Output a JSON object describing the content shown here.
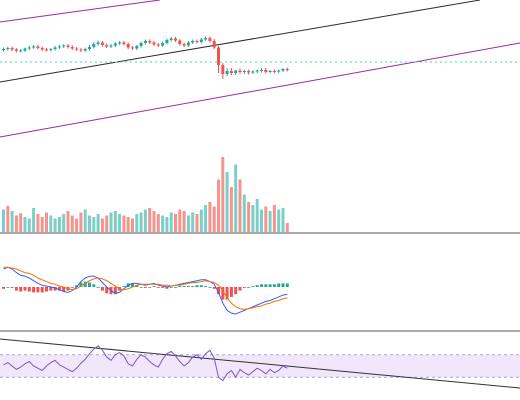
{
  "colors": {
    "up": "#26a69a",
    "down": "#ef5350",
    "trendline": "#2b2b2b",
    "channel": "#9c27b0",
    "dashed_level": "#4dd0c5",
    "macd_line": "#2962ff",
    "signal_line": "#ff6d00",
    "rsi_line": "#7e57c2",
    "rsi_band_fill": "#f2e6fb",
    "pane_divider": "#555555"
  },
  "icons": [],
  "chart_data": [
    {
      "type": "candlestick",
      "title": "",
      "panel": "price",
      "open": [
        40,
        42,
        44,
        41,
        38,
        39,
        43,
        45,
        47,
        44,
        41,
        40,
        42,
        45,
        47,
        49,
        46,
        43,
        41,
        39,
        42,
        46,
        52,
        55,
        50,
        47,
        49,
        53,
        55,
        52,
        45,
        43,
        48,
        54,
        58,
        55,
        51,
        49,
        54,
        60,
        63,
        59,
        52,
        49,
        55,
        58,
        56,
        61,
        64,
        58,
        45,
        10,
        -8,
        -2,
        -6,
        -1,
        -4,
        -2,
        -5,
        -3,
        -1,
        0,
        -4,
        -2,
        -3,
        -1,
        2
      ],
      "close": [
        42,
        44,
        41,
        38,
        39,
        43,
        45,
        47,
        44,
        41,
        40,
        42,
        45,
        47,
        49,
        46,
        43,
        41,
        39,
        42,
        46,
        52,
        55,
        50,
        47,
        49,
        53,
        55,
        52,
        45,
        43,
        48,
        54,
        58,
        55,
        51,
        49,
        54,
        60,
        63,
        59,
        52,
        49,
        55,
        58,
        56,
        61,
        64,
        58,
        45,
        10,
        -8,
        -2,
        -6,
        -1,
        -4,
        -2,
        -5,
        -3,
        -1,
        0,
        -4,
        -2,
        -3,
        -1,
        2,
        0
      ],
      "high": [
        45,
        47,
        47,
        44,
        42,
        45,
        48,
        50,
        50,
        47,
        44,
        44,
        48,
        50,
        52,
        52,
        49,
        46,
        44,
        45,
        50,
        56,
        59,
        58,
        53,
        52,
        56,
        58,
        58,
        55,
        48,
        50,
        57,
        61,
        61,
        58,
        54,
        57,
        63,
        66,
        66,
        62,
        55,
        58,
        61,
        61,
        64,
        67,
        67,
        62,
        48,
        14,
        3,
        4,
        0,
        3,
        0,
        1,
        0,
        1,
        4,
        4,
        0,
        1,
        1,
        4,
        5
      ],
      "low": [
        37,
        39,
        38,
        35,
        35,
        36,
        40,
        42,
        41,
        38,
        37,
        37,
        39,
        42,
        44,
        43,
        40,
        38,
        36,
        36,
        39,
        43,
        49,
        47,
        44,
        44,
        46,
        50,
        49,
        42,
        40,
        40,
        45,
        51,
        52,
        48,
        46,
        46,
        51,
        57,
        56,
        49,
        46,
        46,
        52,
        53,
        53,
        58,
        55,
        42,
        -6,
        -18,
        -12,
        -10,
        -10,
        -8,
        -8,
        -9,
        -8,
        -6,
        -5,
        -7,
        -7,
        -7,
        -6,
        -4,
        -3
      ],
      "xlabel": "",
      "ylabel": ""
    },
    {
      "type": "bar",
      "title": "",
      "panel": "volume",
      "values": [
        30,
        35,
        28,
        22,
        25,
        20,
        18,
        32,
        24,
        20,
        26,
        22,
        18,
        20,
        24,
        28,
        22,
        18,
        26,
        30,
        22,
        20,
        24,
        18,
        22,
        26,
        28,
        24,
        22,
        20,
        18,
        24,
        26,
        30,
        32,
        28,
        24,
        22,
        20,
        26,
        24,
        30,
        28,
        22,
        26,
        24,
        30,
        36,
        40,
        34,
        70,
        100,
        80,
        60,
        90,
        70,
        50,
        40,
        36,
        44,
        30,
        34,
        28,
        36,
        30,
        32,
        12
      ],
      "direction": [
        "up",
        "down",
        "up",
        "down",
        "down",
        "up",
        "up",
        "up",
        "down",
        "down",
        "down",
        "up",
        "up",
        "up",
        "up",
        "down",
        "down",
        "down",
        "down",
        "up",
        "up",
        "up",
        "up",
        "down",
        "down",
        "up",
        "up",
        "up",
        "down",
        "down",
        "down",
        "up",
        "up",
        "up",
        "down",
        "down",
        "down",
        "up",
        "up",
        "up",
        "down",
        "down",
        "down",
        "up",
        "up",
        "down",
        "up",
        "up",
        "down",
        "down",
        "down",
        "down",
        "up",
        "down",
        "up",
        "down",
        "up",
        "down",
        "up",
        "up",
        "up",
        "down",
        "up",
        "down",
        "up",
        "up",
        "down"
      ],
      "xlabel": "",
      "ylabel": ""
    },
    {
      "type": "line",
      "title": "",
      "panel": "macd",
      "series": [
        {
          "values": [
            2.0,
            2.2,
            2.0,
            1.6,
            1.3,
            1.2,
            1.0,
            0.7,
            0.4,
            0.2,
            0.1,
            0.0,
            -0.1,
            -0.3,
            -0.5,
            -0.6,
            -0.4,
            0.0,
            0.6,
            1.0,
            1.2,
            1.2,
            1.0,
            0.5,
            0.0,
            -0.4,
            -0.7,
            -0.6,
            -0.2,
            0.2,
            0.4,
            0.4,
            0.3,
            0.2,
            0.3,
            0.4,
            0.2,
            0.1,
            0.0,
            0.1,
            0.2,
            0.3,
            0.4,
            0.5,
            0.6,
            0.7,
            0.8,
            0.8,
            0.6,
            0.3,
            -0.6,
            -1.8,
            -2.6,
            -2.9,
            -3.0,
            -2.8,
            -2.6,
            -2.4,
            -2.2,
            -2.0,
            -1.8,
            -1.6,
            -1.5,
            -1.3,
            -1.1,
            -0.9,
            -0.8
          ]
        },
        {
          "values": [
            2.2,
            2.2,
            2.1,
            2.0,
            1.8,
            1.6,
            1.5,
            1.3,
            1.0,
            0.8,
            0.6,
            0.4,
            0.3,
            0.1,
            0.0,
            -0.2,
            -0.3,
            -0.2,
            0.1,
            0.4,
            0.7,
            0.9,
            1.0,
            0.9,
            0.7,
            0.4,
            0.1,
            -0.2,
            -0.3,
            -0.2,
            0.0,
            0.2,
            0.3,
            0.3,
            0.3,
            0.3,
            0.3,
            0.2,
            0.2,
            0.1,
            0.2,
            0.2,
            0.3,
            0.4,
            0.5,
            0.5,
            0.6,
            0.7,
            0.6,
            0.5,
            0.2,
            -0.4,
            -1.2,
            -1.8,
            -2.2,
            -2.4,
            -2.5,
            -2.4,
            -2.3,
            -2.2,
            -2.1,
            -1.9,
            -1.8,
            -1.6,
            -1.5,
            -1.3,
            -1.2
          ]
        }
      ],
      "histogram": [
        -0.2,
        0.0,
        -0.1,
        -0.4,
        -0.5,
        -0.4,
        -0.5,
        -0.6,
        -0.6,
        -0.6,
        -0.5,
        -0.4,
        -0.4,
        -0.4,
        -0.5,
        -0.4,
        -0.1,
        0.2,
        0.5,
        0.6,
        0.5,
        0.3,
        0.0,
        -0.4,
        -0.7,
        -0.8,
        -0.8,
        -0.4,
        0.1,
        0.4,
        0.4,
        0.2,
        0.0,
        -0.1,
        0.0,
        0.1,
        -0.1,
        -0.1,
        -0.2,
        0.0,
        0.0,
        0.1,
        0.1,
        0.1,
        0.1,
        0.2,
        0.2,
        0.1,
        0.0,
        -0.2,
        -0.8,
        -1.4,
        -1.4,
        -1.1,
        -0.8,
        -0.4,
        -0.1,
        0.0,
        0.1,
        0.2,
        0.3,
        0.3,
        0.3,
        0.3,
        0.4,
        0.4,
        0.4
      ],
      "xlabel": "",
      "ylabel": ""
    },
    {
      "type": "line",
      "title": "",
      "panel": "rsi",
      "series": [
        {
          "values": [
            52,
            56,
            50,
            44,
            48,
            54,
            58,
            50,
            46,
            42,
            50,
            56,
            60,
            52,
            48,
            44,
            40,
            46,
            55,
            62,
            72,
            80,
            86,
            78,
            66,
            60,
            70,
            74,
            68,
            54,
            50,
            62,
            70,
            66,
            58,
            52,
            48,
            62,
            72,
            76,
            68,
            58,
            50,
            56,
            66,
            70,
            62,
            72,
            78,
            64,
            30,
            24,
            36,
            42,
            30,
            44,
            38,
            34,
            40,
            46,
            42,
            36,
            44,
            38,
            42,
            50,
            46
          ]
        }
      ],
      "ylim": [
        0,
        100
      ],
      "xlabel": "",
      "ylabel": ""
    }
  ]
}
